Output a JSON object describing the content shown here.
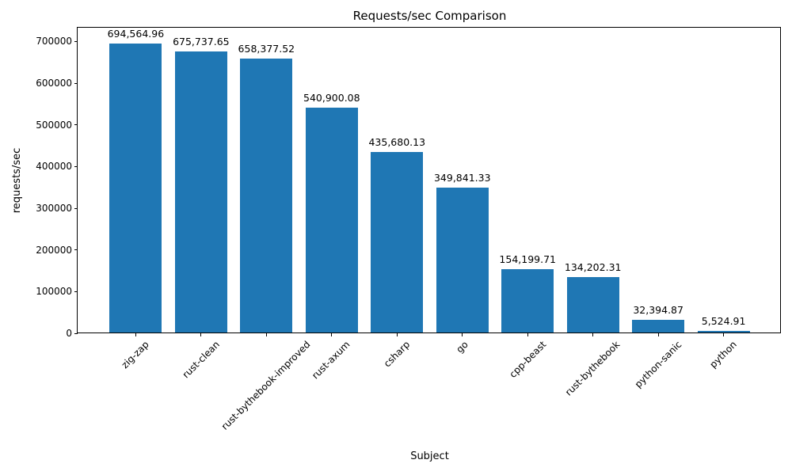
{
  "chart_data": {
    "type": "bar",
    "title": "Requests/sec Comparison",
    "xlabel": "Subject",
    "ylabel": "requests/sec",
    "categories": [
      "zig-zap",
      "rust-clean",
      "rust-bythebook-improved",
      "rust-axum",
      "csharp",
      "go",
      "cpp-beast",
      "rust-bythebook",
      "python-sanic",
      "python"
    ],
    "values": [
      694564.96,
      675737.65,
      658377.52,
      540900.08,
      435680.13,
      349841.33,
      154199.71,
      134202.31,
      32394.87,
      5524.91
    ],
    "bar_labels": [
      "694,564.96",
      "675,737.65",
      "658,377.52",
      "540,900.08",
      "435,680.13",
      "349,841.33",
      "154,199.71",
      "134,202.31",
      "32,394.87",
      "5,524.91"
    ],
    "ylim": [
      0,
      700000
    ],
    "ytick_labels": [
      "0",
      "100000",
      "200000",
      "300000",
      "400000",
      "500000",
      "600000",
      "700000"
    ],
    "bar_color": "#1f77b4",
    "axis_color": "#000000",
    "background_color": "#ffffff",
    "grid": false,
    "legend": false,
    "xtick_rotation_deg": 45
  }
}
